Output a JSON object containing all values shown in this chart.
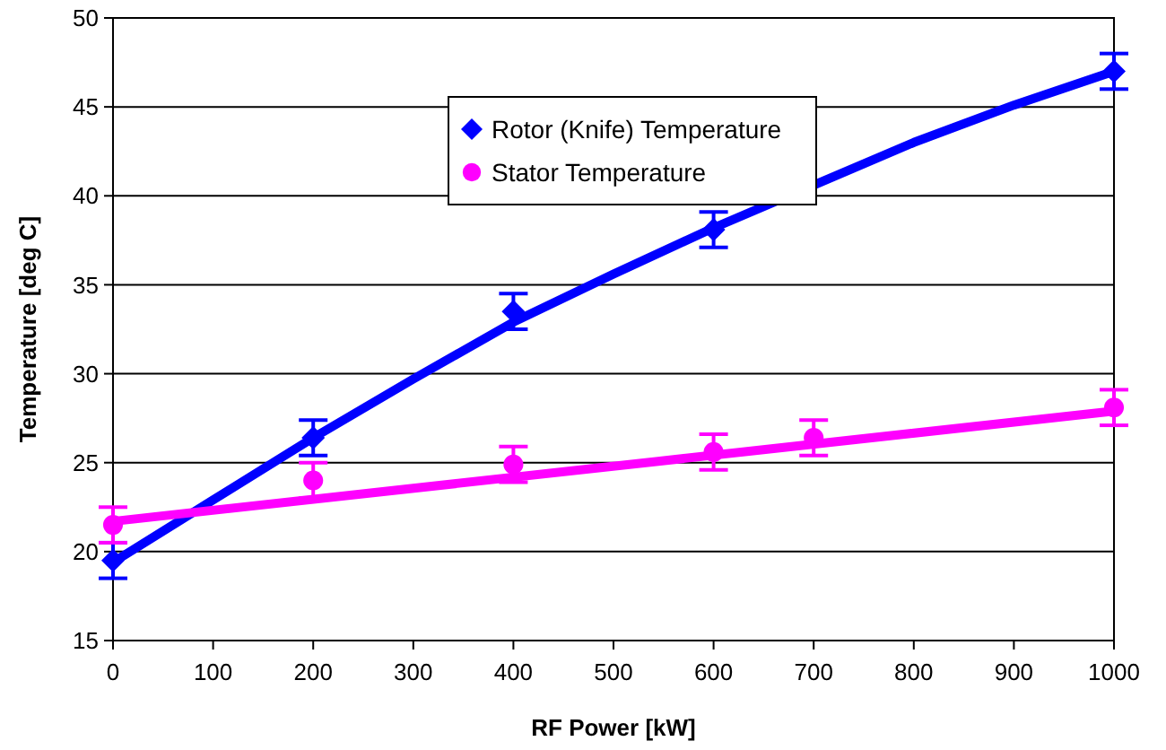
{
  "chart_data": {
    "type": "scatter",
    "xlabel": "RF Power [kW]",
    "ylabel": "Temperature [deg C]",
    "xlim": [
      0,
      1000
    ],
    "xticks": [
      0,
      100,
      200,
      300,
      400,
      500,
      600,
      700,
      800,
      900,
      1000
    ],
    "ylim": [
      15,
      50
    ],
    "yticks": [
      15,
      20,
      25,
      30,
      35,
      40,
      45,
      50
    ],
    "grid": "y",
    "legend": "top",
    "series": [
      {
        "type": "line",
        "color": "#0000ff",
        "marker": "none",
        "x": [
          0,
          100,
          200,
          300,
          400,
          500,
          600,
          700,
          800,
          900,
          1000
        ],
        "values": [
          19.4,
          22.9,
          26.4,
          29.7,
          32.9,
          35.6,
          38.2,
          40.6,
          43.0,
          45.1,
          47.0
        ]
      },
      {
        "type": "line",
        "color": "#ff00ff",
        "marker": "none",
        "x": [
          0,
          1000
        ],
        "values": [
          21.7,
          27.9
        ]
      },
      {
        "name": "Rotor (Knife) Temperature",
        "color": "#0000ff",
        "marker": "diamond",
        "x": [
          0,
          200,
          400,
          600,
          1000
        ],
        "values": [
          19.5,
          26.4,
          33.5,
          38.1,
          47.0
        ],
        "errors": [
          1,
          1,
          1,
          1,
          1
        ]
      },
      {
        "name": "Stator Temperature",
        "color": "#ff00ff",
        "marker": "circle",
        "x": [
          0,
          200,
          400,
          600,
          700,
          1000
        ],
        "values": [
          21.5,
          24.0,
          24.9,
          25.6,
          26.4,
          28.1
        ],
        "errors": [
          1,
          1,
          1,
          1,
          1,
          1
        ]
      }
    ]
  }
}
